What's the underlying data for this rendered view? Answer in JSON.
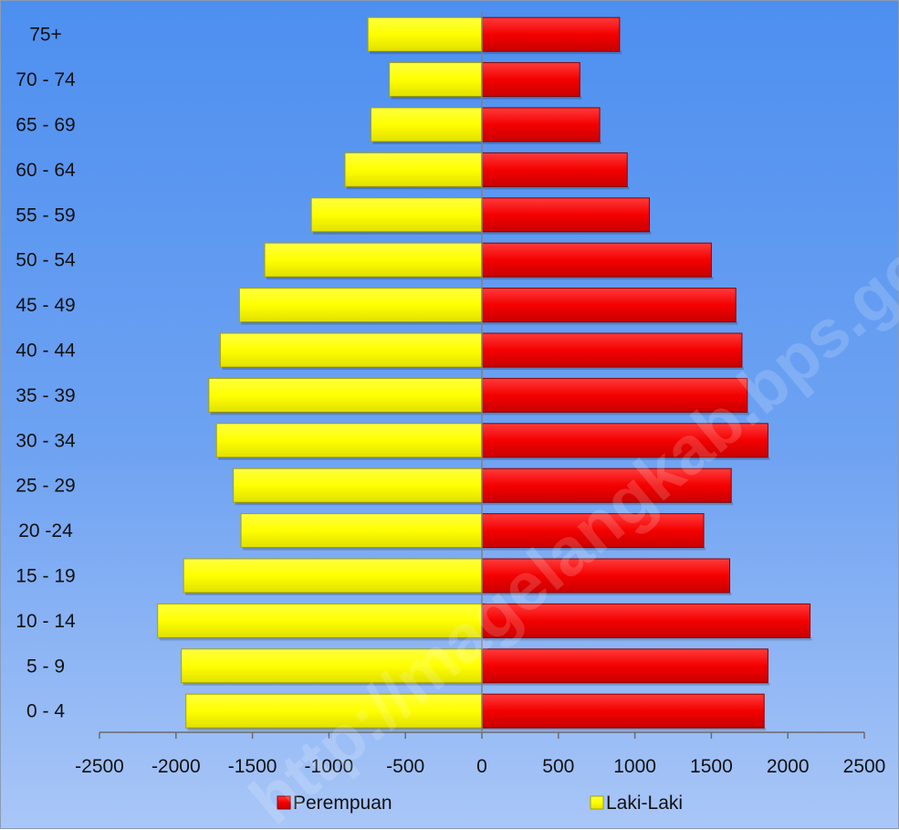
{
  "chart_data": {
    "type": "bar",
    "orientation": "horizontal",
    "layout": "population-pyramid",
    "categories": [
      "75+",
      "70 - 74",
      "65 - 69",
      "60 - 64",
      "55 - 59",
      "50 - 54",
      "45 - 49",
      "40 - 44",
      "35 - 39",
      "30 - 34",
      "25 - 29",
      "20 -24",
      "15 - 19",
      "10 - 14",
      "5 -  9",
      "0 -  4"
    ],
    "series": [
      {
        "name": "Perempuan",
        "color": "#ff0000",
        "values": [
          900,
          640,
          770,
          950,
          1095,
          1500,
          1660,
          1700,
          1735,
          1870,
          1630,
          1450,
          1620,
          2145,
          1870,
          1845
        ]
      },
      {
        "name": "Laki-Laki",
        "color": "#ffff00",
        "values": [
          -745,
          -605,
          -725,
          -895,
          -1115,
          -1420,
          -1585,
          -1710,
          -1785,
          -1735,
          -1625,
          -1575,
          -1950,
          -2120,
          -1965,
          -1935
        ]
      }
    ],
    "xlim": [
      -2500,
      2500
    ],
    "xticks": [
      -2500,
      -2000,
      -1500,
      -1000,
      -500,
      0,
      500,
      1000,
      1500,
      2000,
      2500
    ],
    "xtick_labels": [
      "-2500",
      "-2000",
      "-1500",
      "-1000",
      "-500",
      "0",
      "500",
      "1000",
      "1500",
      "2000",
      "2500"
    ],
    "legend_position": "bottom",
    "grid": false,
    "watermark": "http://magelangkab.bps.go.id"
  }
}
